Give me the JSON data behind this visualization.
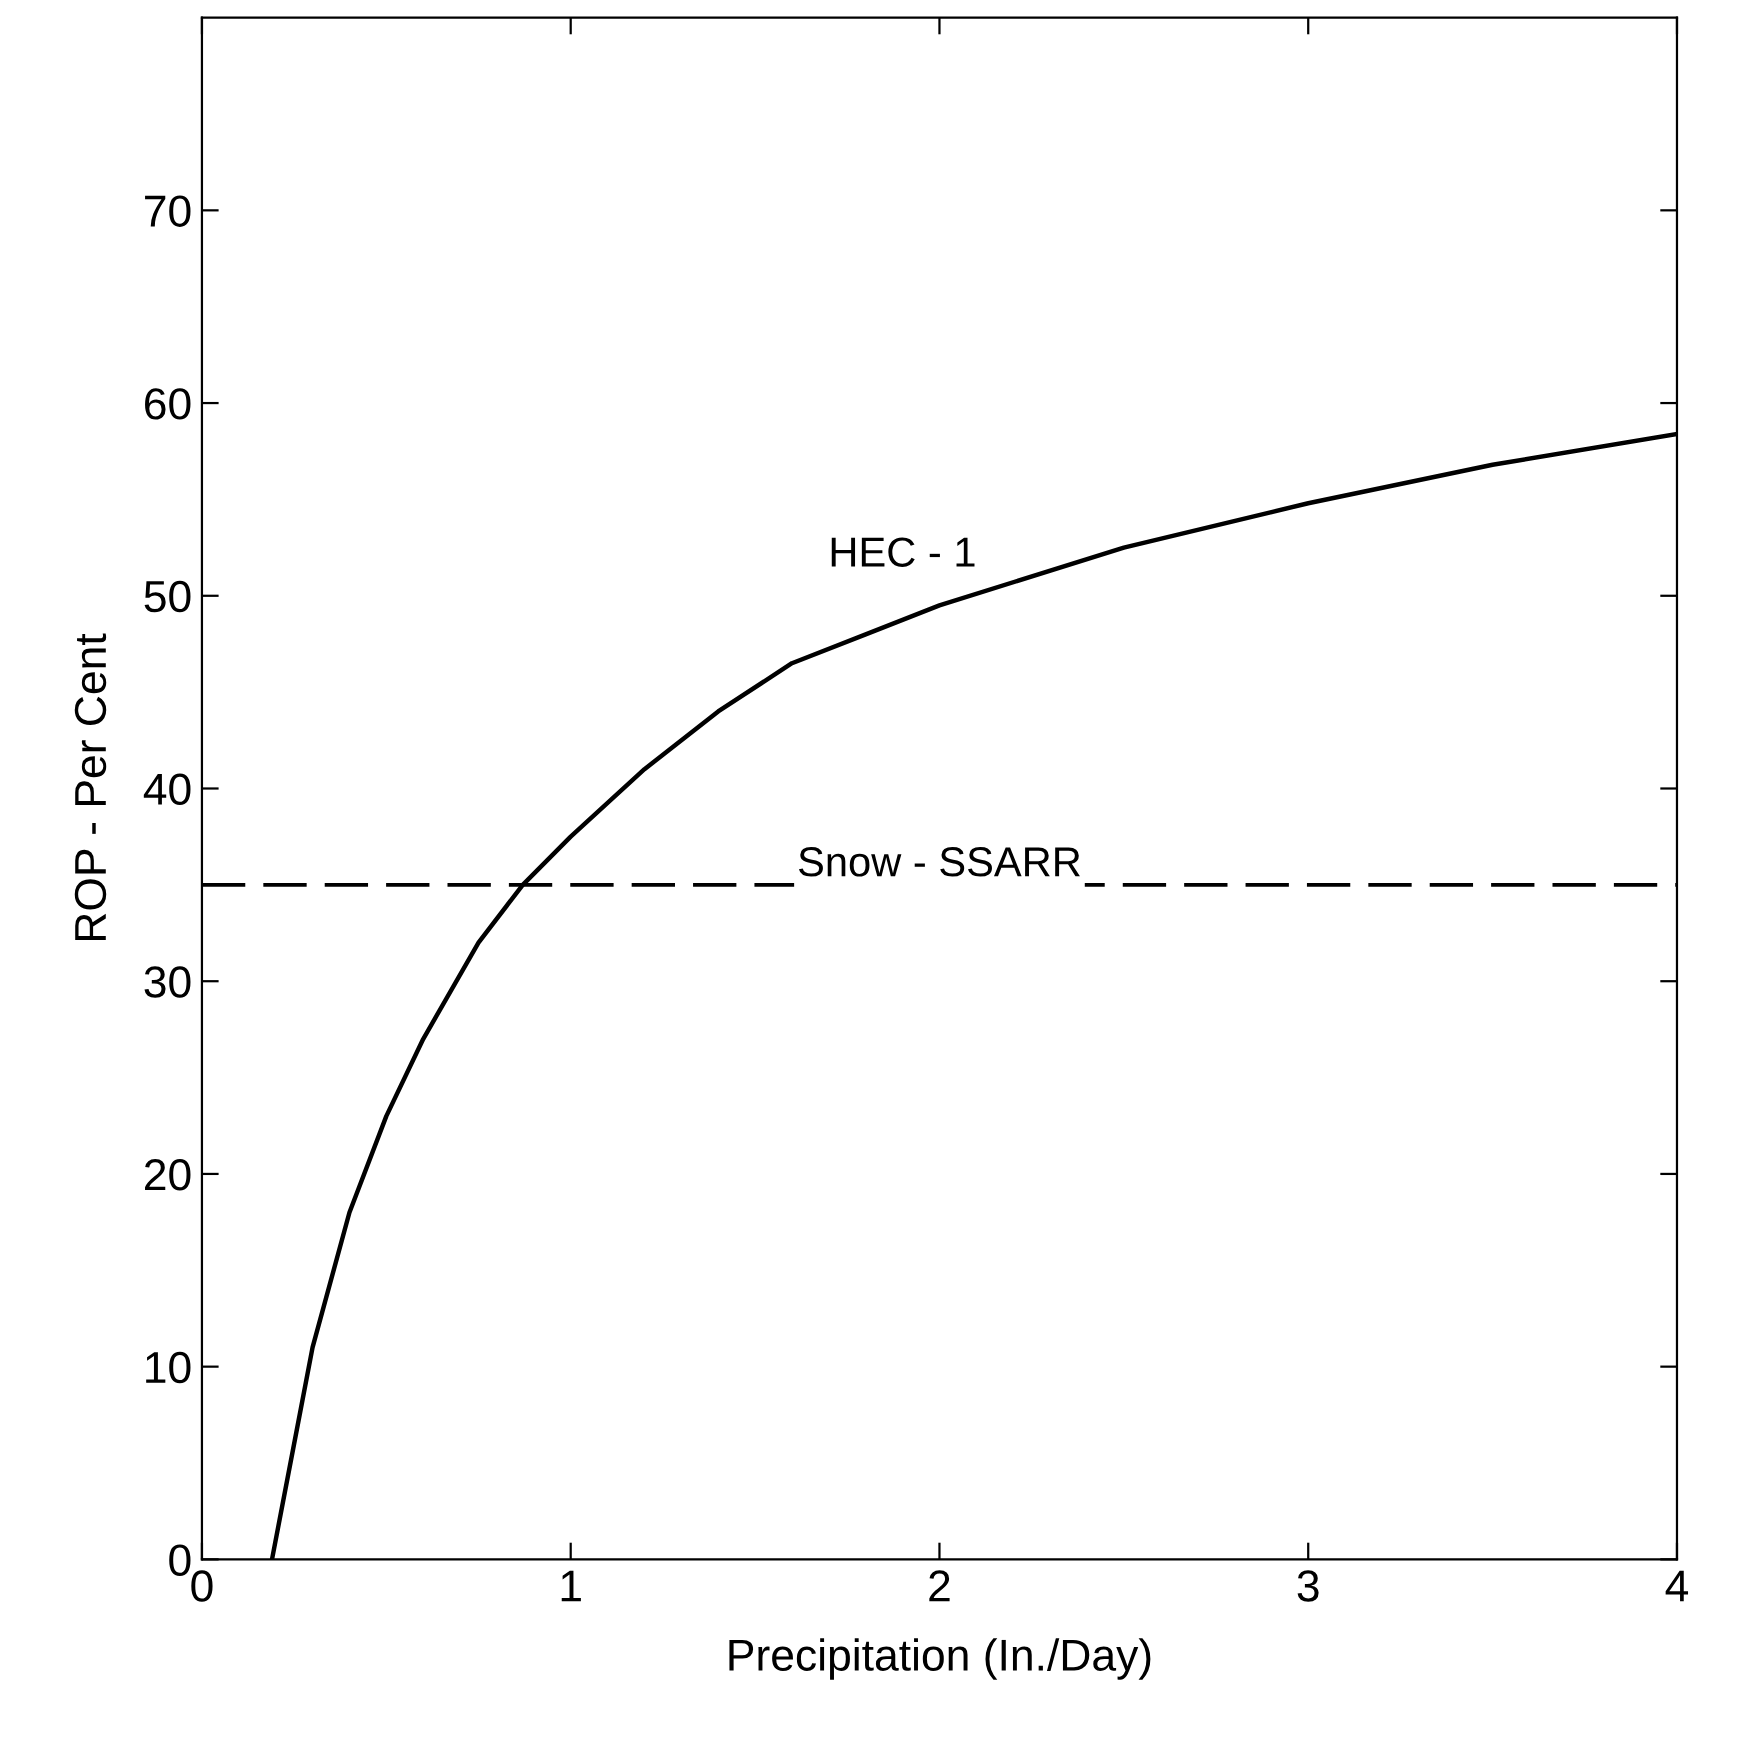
{
  "chart_data": {
    "type": "line",
    "xlabel": "Precipitation (In./Day)",
    "ylabel": "ROP - Per Cent",
    "xlim": [
      0,
      4
    ],
    "ylim": [
      0,
      80
    ],
    "xticks": [
      0,
      1,
      2,
      3,
      4
    ],
    "yticks": [
      0,
      10,
      20,
      30,
      40,
      50,
      60,
      70
    ],
    "grid": false,
    "legend": false,
    "marker": "none",
    "line_style": "solid",
    "series": [
      {
        "name": "HEC - 1",
        "color": "#000000",
        "x": [
          0.19,
          0.25,
          0.3,
          0.4,
          0.5,
          0.6,
          0.75,
          0.87,
          1.0,
          1.2,
          1.4,
          1.6,
          1.8,
          2.0,
          2.5,
          3.0,
          3.5,
          4.0
        ],
        "values": [
          0,
          6,
          11,
          18,
          23,
          27,
          32,
          35,
          37.5,
          41,
          44,
          46.5,
          48,
          49.5,
          52.5,
          54.8,
          56.8,
          58.4
        ]
      }
    ],
    "ref_lines": [
      {
        "axis": "y",
        "value": 35,
        "label": "Snow - SSARR",
        "color": "#000000",
        "line_style": "dashed"
      }
    ]
  }
}
